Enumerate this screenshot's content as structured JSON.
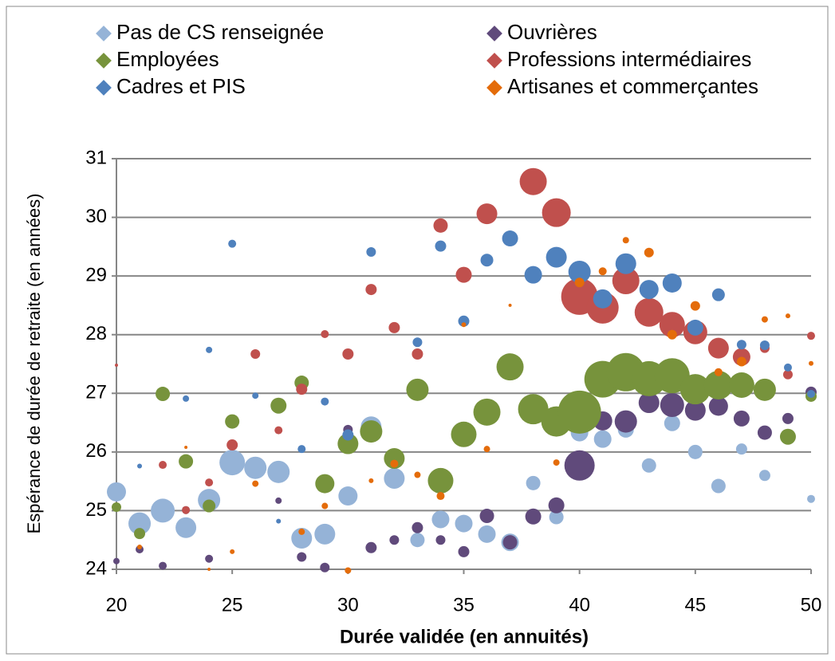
{
  "chart_data": {
    "type": "bubble",
    "xlabel": "Durée validée (en annuités)",
    "ylabel": "Espérance de durée de retraite (en années)",
    "xlim": [
      20,
      50
    ],
    "xticks": [
      20,
      25,
      30,
      35,
      40,
      45,
      50
    ],
    "ylim": [
      24,
      31
    ],
    "yticks": [
      24,
      25,
      26,
      27,
      28,
      29,
      30,
      31
    ],
    "grid": true,
    "legend": "top",
    "series": [
      {
        "name": "Pas de CS renseignée",
        "color": "#95B3D7",
        "x": [
          20,
          21,
          22,
          23,
          24,
          25,
          26,
          27,
          28,
          29,
          30,
          31,
          32,
          33,
          34,
          35,
          36,
          37,
          38,
          39,
          40,
          41,
          42,
          43,
          44,
          45,
          46,
          47,
          48,
          50
        ],
        "values": [
          25.32,
          24.78,
          25.0,
          24.71,
          25.18,
          25.82,
          25.73,
          25.66,
          24.53,
          24.6,
          25.25,
          26.43,
          25.55,
          24.5,
          24.85,
          24.78,
          24.6,
          24.46,
          25.47,
          24.89,
          26.33,
          26.22,
          26.38,
          25.77,
          26.49,
          26.0,
          25.42,
          26.05,
          25.6,
          25.2
        ],
        "sizes": [
          12,
          14,
          15,
          13,
          14,
          16,
          14,
          14,
          13,
          13,
          12,
          13,
          13,
          9,
          11,
          11,
          11,
          11,
          9,
          9,
          11,
          11,
          10,
          9,
          10,
          9,
          9,
          7,
          7,
          5
        ]
      },
      {
        "name": "Ouvrières",
        "color": "#604A7B",
        "x": [
          20,
          21,
          22,
          23,
          24,
          27,
          28,
          29,
          30,
          31,
          32,
          33,
          34,
          35,
          36,
          37,
          38,
          39,
          40,
          41,
          42,
          43,
          44,
          45,
          46,
          47,
          48,
          49,
          50
        ],
        "values": [
          24.14,
          24.34,
          24.06,
          25.01,
          24.18,
          25.17,
          24.21,
          24.03,
          26.38,
          24.37,
          24.5,
          24.71,
          24.5,
          24.3,
          24.91,
          24.46,
          24.9,
          25.09,
          25.77,
          26.53,
          26.52,
          26.84,
          26.8,
          26.71,
          26.78,
          26.57,
          26.33,
          26.57,
          27.02
        ],
        "sizes": [
          4,
          5,
          5,
          5,
          5,
          4,
          6,
          6,
          6,
          7,
          6,
          7,
          6,
          7,
          9,
          9,
          10,
          10,
          19,
          12,
          14,
          13,
          15,
          13,
          12,
          10,
          9,
          7,
          7
        ]
      },
      {
        "name": "Employées",
        "color": "#77933C",
        "x": [
          20,
          21,
          22,
          23,
          24,
          25,
          27,
          28,
          29,
          30,
          31,
          32,
          33,
          34,
          35,
          36,
          37,
          38,
          39,
          40,
          41,
          42,
          43,
          44,
          45,
          46,
          47,
          48,
          49,
          50
        ],
        "values": [
          25.06,
          24.61,
          26.99,
          25.84,
          25.08,
          26.52,
          26.79,
          27.18,
          25.46,
          26.14,
          26.35,
          25.89,
          27.06,
          25.51,
          26.3,
          26.68,
          27.45,
          26.73,
          26.52,
          26.68,
          27.24,
          27.36,
          27.25,
          27.3,
          27.07,
          27.14,
          27.14,
          27.06,
          26.26,
          26.95
        ],
        "sizes": [
          6,
          7,
          9,
          9,
          8,
          9,
          10,
          9,
          12,
          13,
          14,
          13,
          14,
          16,
          16,
          17,
          17,
          19,
          19,
          27,
          23,
          24,
          22,
          22,
          19,
          18,
          16,
          14,
          10,
          7
        ]
      },
      {
        "name": "Professions intermédiaires",
        "color": "#C0504D",
        "x": [
          20,
          22,
          23,
          24,
          25,
          26,
          27,
          28,
          29,
          30,
          31,
          32,
          33,
          34,
          35,
          36,
          38,
          39,
          40,
          41,
          42,
          43,
          44,
          45,
          46,
          47,
          48,
          49,
          50
        ],
        "values": [
          27.48,
          25.78,
          25.01,
          25.48,
          26.12,
          27.67,
          26.37,
          27.07,
          28.01,
          27.67,
          28.77,
          28.12,
          27.67,
          29.86,
          29.02,
          30.06,
          30.61,
          30.08,
          28.65,
          28.46,
          28.92,
          28.38,
          28.17,
          28.04,
          27.77,
          27.62,
          27.77,
          27.32,
          27.98
        ],
        "sizes": [
          2,
          5,
          5,
          5,
          7,
          6,
          5,
          7,
          5,
          7,
          7,
          7,
          7,
          9,
          10,
          13,
          17,
          18,
          23,
          20,
          17,
          18,
          16,
          15,
          13,
          11,
          6,
          6,
          5
        ]
      },
      {
        "name": "Cadres et PIS",
        "color": "#4F81BD",
        "x": [
          21,
          23,
          24,
          25,
          26,
          27,
          28,
          29,
          30,
          31,
          33,
          34,
          35,
          36,
          37,
          38,
          39,
          40,
          41,
          42,
          43,
          44,
          45,
          46,
          47,
          48,
          49,
          50
        ],
        "values": [
          25.76,
          26.91,
          27.74,
          29.55,
          26.96,
          24.82,
          26.05,
          26.86,
          26.29,
          29.41,
          27.87,
          29.51,
          28.23,
          29.27,
          29.64,
          29.02,
          29.32,
          29.07,
          28.61,
          29.21,
          28.77,
          28.88,
          28.12,
          28.68,
          27.83,
          27.82,
          27.44,
          26.99
        ],
        "sizes": [
          3,
          4,
          4,
          5,
          4,
          3,
          5,
          5,
          7,
          6,
          6,
          7,
          7,
          8,
          10,
          11,
          13,
          14,
          12,
          13,
          12,
          12,
          10,
          8,
          6,
          6,
          5,
          5
        ]
      },
      {
        "name": "Artisanes et commerçantes",
        "color": "#E46C0A",
        "x": [
          21,
          23,
          24,
          25,
          26,
          28,
          29,
          30,
          31,
          32,
          33,
          34,
          35,
          36,
          37,
          39,
          40,
          41,
          42,
          43,
          44,
          45,
          46,
          47,
          48,
          49,
          50
        ],
        "values": [
          24.38,
          26.08,
          24.0,
          24.3,
          25.46,
          24.64,
          25.08,
          23.98,
          25.51,
          25.8,
          25.61,
          25.25,
          28.17,
          26.05,
          28.5,
          25.82,
          28.89,
          29.08,
          29.61,
          29.4,
          28.0,
          28.49,
          27.36,
          27.54,
          28.26,
          28.32,
          27.51
        ],
        "sizes": [
          3,
          2,
          2,
          3,
          4,
          4,
          4,
          4,
          3,
          5,
          4,
          5,
          3,
          4,
          2,
          4,
          6,
          5,
          4,
          6,
          6,
          6,
          5,
          6,
          4,
          3,
          3
        ]
      }
    ]
  }
}
